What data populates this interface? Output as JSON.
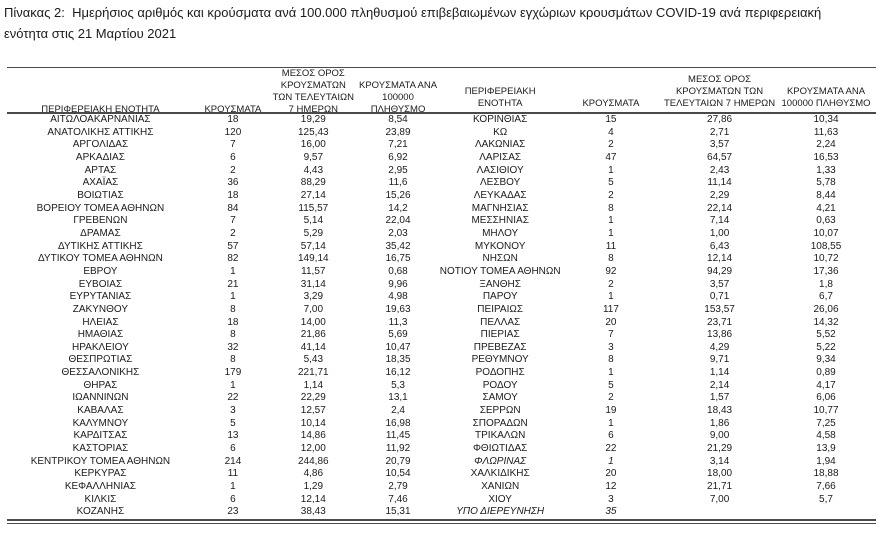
{
  "title": "Πίνακας 2:  Ημερήσιος αριθμός και κρούσματα ανά 100.000 πληθυσμού επιβεβαιωμένων εγχώριων κρουσμάτων COVID-19 ανά περιφερειακή\nενότητα στις 21 Μαρτίου 2021",
  "colors": {
    "text": "#1b1b1b",
    "rule": "#4a4a4a",
    "background": "#ffffff"
  },
  "table": {
    "headers": {
      "region": "ΠΕΡΙΦΕΡΕΙΑΚΗ ΕΝΟΤΗΤΑ",
      "cases": "ΚΡΟΥΣΜΑΤΑ",
      "avg7": "ΜΕΣΟΣ ΟΡΟΣ ΚΡΟΥΣΜΑΤΩΝ ΤΩΝ ΤΕΛΕΥΤΑΙΩΝ 7 ΗΜΕΡΩΝ",
      "per100k": "ΚΡΟΥΣΜΑΤΑ ΑΝΑ 100000 ΠΛΗΘΥΣΜΟ"
    },
    "left_rows": [
      [
        "ΑΙΤΩΛΟΑΚΑΡΝΑΝΙΑΣ",
        "18",
        "19,29",
        "8,54"
      ],
      [
        "ΑΝΑΤΟΛΙΚΗΣ ΑΤΤΙΚΗΣ",
        "120",
        "125,43",
        "23,89"
      ],
      [
        "ΑΡΓΟΛΙΔΑΣ",
        "7",
        "16,00",
        "7,21"
      ],
      [
        "ΑΡΚΑΔΙΑΣ",
        "6",
        "9,57",
        "6,92"
      ],
      [
        "ΑΡΤΑΣ",
        "2",
        "4,43",
        "2,95"
      ],
      [
        "ΑΧΑΪΑΣ",
        "36",
        "88,29",
        "11,6"
      ],
      [
        "ΒΟΙΩΤΙΑΣ",
        "18",
        "27,14",
        "15,26"
      ],
      [
        "ΒΟΡΕΙΟΥ ΤΟΜΕΑ ΑΘΗΝΩΝ",
        "84",
        "115,57",
        "14,2"
      ],
      [
        "ΓΡΕΒΕΝΩΝ",
        "7",
        "5,14",
        "22,04"
      ],
      [
        "ΔΡΑΜΑΣ",
        "2",
        "5,29",
        "2,03"
      ],
      [
        "ΔΥΤΙΚΗΣ ΑΤΤΙΚΗΣ",
        "57",
        "57,14",
        "35,42"
      ],
      [
        "ΔΥΤΙΚΟΥ ΤΟΜΕΑ ΑΘΗΝΩΝ",
        "82",
        "149,14",
        "16,75"
      ],
      [
        "ΕΒΡΟΥ",
        "1",
        "11,57",
        "0,68"
      ],
      [
        "ΕΥΒΟΙΑΣ",
        "21",
        "31,14",
        "9,96"
      ],
      [
        "ΕΥΡΥΤΑΝΙΑΣ",
        "1",
        "3,29",
        "4,98"
      ],
      [
        "ΖΑΚΥΝΘΟΥ",
        "8",
        "7,00",
        "19,63"
      ],
      [
        "ΗΛΕΙΑΣ",
        "18",
        "14,00",
        "11,3"
      ],
      [
        "ΗΜΑΘΙΑΣ",
        "8",
        "21,86",
        "5,69"
      ],
      [
        "ΗΡΑΚΛΕΙΟΥ",
        "32",
        "41,14",
        "10,47"
      ],
      [
        "ΘΕΣΠΡΩΤΙΑΣ",
        "8",
        "5,43",
        "18,35"
      ],
      [
        "ΘΕΣΣΑΛΟΝΙΚΗΣ",
        "179",
        "221,71",
        "16,12"
      ],
      [
        "ΘΗΡΑΣ",
        "1",
        "1,14",
        "5,3"
      ],
      [
        "ΙΩΑΝΝΙΝΩΝ",
        "22",
        "22,29",
        "13,1"
      ],
      [
        "ΚΑΒΑΛΑΣ",
        "3",
        "12,57",
        "2,4"
      ],
      [
        "ΚΑΛΥΜΝΟΥ",
        "5",
        "10,14",
        "16,98"
      ],
      [
        "ΚΑΡΔΙΤΣΑΣ",
        "13",
        "14,86",
        "11,45"
      ],
      [
        "ΚΑΣΤΟΡΙΑΣ",
        "6",
        "12,00",
        "11,92"
      ],
      [
        "ΚΕΝΤΡΙΚΟΥ ΤΟΜΕΑ ΑΘΗΝΩΝ",
        "214",
        "244,86",
        "20,79"
      ],
      [
        "ΚΕΡΚΥΡΑΣ",
        "11",
        "4,86",
        "10,54"
      ],
      [
        "ΚΕΦΑΛΛΗΝΙΑΣ",
        "1",
        "1,29",
        "2,79"
      ],
      [
        "ΚΙΛΚΙΣ",
        "6",
        "12,14",
        "7,46"
      ],
      [
        "ΚΟΖΑΝΗΣ",
        "23",
        "38,43",
        "15,31"
      ]
    ],
    "right_rows": [
      [
        "ΚΟΡΙΝΘΙΑΣ",
        "15",
        "27,86",
        "10,34"
      ],
      [
        "ΚΩ",
        "4",
        "2,71",
        "11,63"
      ],
      [
        "ΛΑΚΩΝΙΑΣ",
        "2",
        "3,57",
        "2,24"
      ],
      [
        "ΛΑΡΙΣΑΣ",
        "47",
        "64,57",
        "16,53"
      ],
      [
        "ΛΑΣΙΘΙΟΥ",
        "1",
        "2,43",
        "1,33"
      ],
      [
        "ΛΕΣΒΟΥ",
        "5",
        "11,14",
        "5,78"
      ],
      [
        "ΛΕΥΚΑΔΑΣ",
        "2",
        "2,29",
        "8,44"
      ],
      [
        "ΜΑΓΝΗΣΙΑΣ",
        "8",
        "22,14",
        "4,21"
      ],
      [
        "ΜΕΣΣΗΝΙΑΣ",
        "1",
        "7,14",
        "0,63"
      ],
      [
        "ΜΗΛΟΥ",
        "1",
        "1,00",
        "10,07"
      ],
      [
        "ΜΥΚΟΝΟΥ",
        "11",
        "6,43",
        "108,55"
      ],
      [
        "ΝΗΣΩΝ",
        "8",
        "12,14",
        "10,72"
      ],
      [
        "ΝΟΤΙΟΥ ΤΟΜΕΑ ΑΘΗΝΩΝ",
        "92",
        "94,29",
        "17,36"
      ],
      [
        "ΞΑΝΘΗΣ",
        "2",
        "3,57",
        "1,8"
      ],
      [
        "ΠΑΡΟΥ",
        "1",
        "0,71",
        "6,7"
      ],
      [
        "ΠΕΙΡΑΙΩΣ",
        "117",
        "153,57",
        "26,06"
      ],
      [
        "ΠΕΛΛΑΣ",
        "20",
        "23,71",
        "14,32"
      ],
      [
        "ΠΙΕΡΙΑΣ",
        "7",
        "13,86",
        "5,52"
      ],
      [
        "ΠΡΕΒΕΖΑΣ",
        "3",
        "4,29",
        "5,22"
      ],
      [
        "ΡΕΘΥΜΝΟΥ",
        "8",
        "9,71",
        "9,34"
      ],
      [
        "ΡΟΔΟΠΗΣ",
        "1",
        "1,14",
        "0,89"
      ],
      [
        "ΡΟΔΟΥ",
        "5",
        "2,14",
        "4,17"
      ],
      [
        "ΣΑΜΟΥ",
        "2",
        "1,57",
        "6,06"
      ],
      [
        "ΣΕΡΡΩΝ",
        "19",
        "18,43",
        "10,77"
      ],
      [
        "ΣΠΟΡΑΔΩΝ",
        "1",
        "1,86",
        "7,25"
      ],
      [
        "ΤΡΙΚΑΛΩΝ",
        "6",
        "9,00",
        "4,58"
      ],
      [
        "ΦΘΙΩΤΙΔΑΣ",
        "22",
        "21,29",
        "13,9"
      ],
      [
        "ΦΛΩΡΙΝΑΣ",
        "1",
        "3,14",
        "1,94",
        "italic-name"
      ],
      [
        "ΧΑΛΚΙΔΙΚΗΣ",
        "20",
        "18,00",
        "18,88"
      ],
      [
        "ΧΑΝΙΩΝ",
        "12",
        "21,71",
        "7,66"
      ],
      [
        "ΧΙΟΥ",
        "3",
        "7,00",
        "5,7"
      ],
      [
        "ΥΠΟ ΔΙΕΡΕΥΝΗΣΗ",
        "35",
        "",
        "",
        "italic-name"
      ]
    ]
  }
}
